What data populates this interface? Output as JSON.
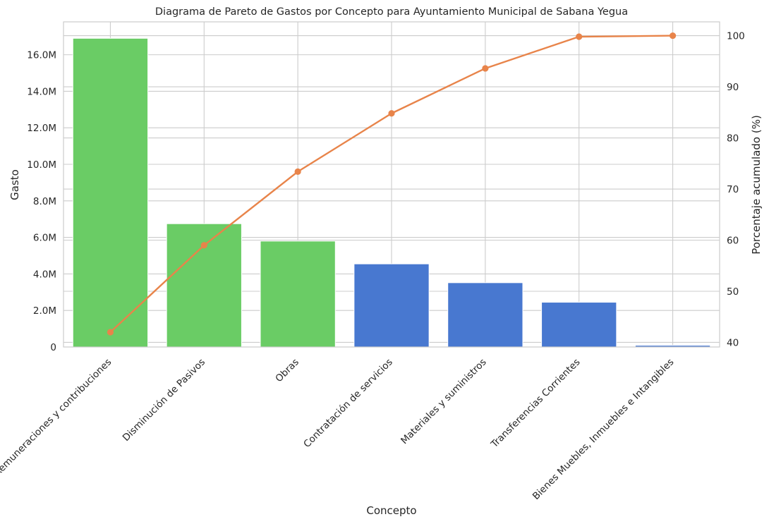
{
  "chart_data": {
    "type": "bar",
    "title": "Diagrama de Pareto de Gastos por Concepto para Ayuntamiento Municipal de Sabana Yegua",
    "xlabel": "Concepto",
    "ylabel": "Gasto",
    "y2label": "Porcentaje acumulado (%)",
    "categories": [
      "Remuneraciones y contribuciones",
      "Disminución de Pasivos",
      "Obras",
      "Contratación de servicios",
      "Materiales y suministros",
      "Transferencias Corrientes",
      "Bienes Muebles, Inmuebles e Intangibles"
    ],
    "series": [
      {
        "type": "bar",
        "axis": "left",
        "values": [
          16900000,
          6750000,
          5800000,
          4550000,
          3520000,
          2450000,
          90000
        ],
        "colors": [
          "#6acc65",
          "#6acc65",
          "#6acc65",
          "#4878d0",
          "#4878d0",
          "#4878d0",
          "#4878d0"
        ]
      },
      {
        "type": "line",
        "axis": "right",
        "values": [
          42.0,
          59.0,
          73.4,
          84.8,
          93.6,
          99.8,
          100.0
        ],
        "color": "#e8844a"
      }
    ],
    "ylim": [
      0,
      17800000
    ],
    "yticks": [
      0,
      2000000,
      4000000,
      6000000,
      8000000,
      10000000,
      12000000,
      14000000,
      16000000
    ],
    "ytick_labels": [
      "0",
      "2.0M",
      "4.0M",
      "6.0M",
      "8.0M",
      "10.0M",
      "12.0M",
      "14.0M",
      "16.0M"
    ],
    "y2lim": [
      39.1,
      102.7
    ],
    "y2ticks": [
      40,
      50,
      60,
      70,
      80,
      90,
      100
    ],
    "y2tick_labels": [
      "40",
      "50",
      "60",
      "70",
      "80",
      "90",
      "100"
    ],
    "grid": true
  }
}
